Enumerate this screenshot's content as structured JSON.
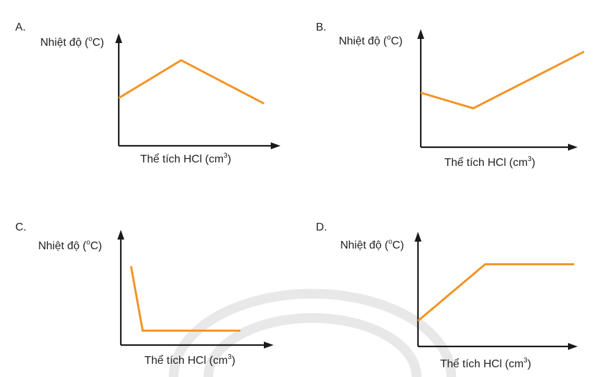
{
  "style": {
    "line_color": "#f39324",
    "axis_color": "#1a1a1a",
    "text_color": "#222222"
  },
  "chart_data": [
    {
      "type": "line",
      "panel": "A.",
      "ylabel": "Nhiệt độ (°C)",
      "xlabel": "Thể tích HCl (cm³)",
      "ylabel_parts": {
        "before": "Nhiệt độ (",
        "sup": "o",
        "after": "C)"
      },
      "xlabel_parts": {
        "before": "Thể tích HCl (cm",
        "sup": "3",
        "after": ")"
      },
      "xlim": [
        0,
        10
      ],
      "ylim": [
        0,
        10
      ],
      "x": [
        0,
        4,
        9.3
      ],
      "y": [
        4.3,
        7.7,
        3.8
      ]
    },
    {
      "type": "line",
      "panel": "B.",
      "ylabel": "Nhiệt độ (°C)",
      "xlabel": "Thể tích HCl (cm³)",
      "ylabel_parts": {
        "before": "Nhiệt độ (",
        "sup": "o",
        "after": "C)"
      },
      "xlabel_parts": {
        "before": "Thể tích HCl (cm",
        "sup": "3",
        "after": ")"
      },
      "xlim": [
        0,
        10
      ],
      "ylim": [
        0,
        10
      ],
      "x": [
        0,
        3.6,
        11.2
      ],
      "y": [
        4.9,
        3.5,
        8.6
      ]
    },
    {
      "type": "line",
      "panel": "C.",
      "ylabel": "Nhiệt độ (°C)",
      "xlabel": "Thể tích HCl (cm³)",
      "ylabel_parts": {
        "before": "Nhiệt độ (",
        "sup": "o",
        "after": "C)"
      },
      "xlabel_parts": {
        "before": "Thể tích HCl (cm",
        "sup": "3",
        "after": ")"
      },
      "xlim": [
        0,
        10
      ],
      "ylim": [
        0,
        10
      ],
      "x": [
        0.7,
        1.5,
        8.2
      ],
      "y": [
        7.1,
        1.3,
        1.3
      ]
    },
    {
      "type": "line",
      "panel": "D.",
      "ylabel": "Nhiệt độ (°C)",
      "xlabel": "Thể tích HCl (cm³)",
      "ylabel_parts": {
        "before": "Nhiệt độ (",
        "sup": "o",
        "after": "C)"
      },
      "xlabel_parts": {
        "before": "Thể tích HCl (cm",
        "sup": "3",
        "after": ")"
      },
      "xlim": [
        0,
        10
      ],
      "ylim": [
        0,
        10
      ],
      "x": [
        0,
        4.3,
        10
      ],
      "y": [
        2.3,
        7.4,
        7.4
      ]
    }
  ]
}
